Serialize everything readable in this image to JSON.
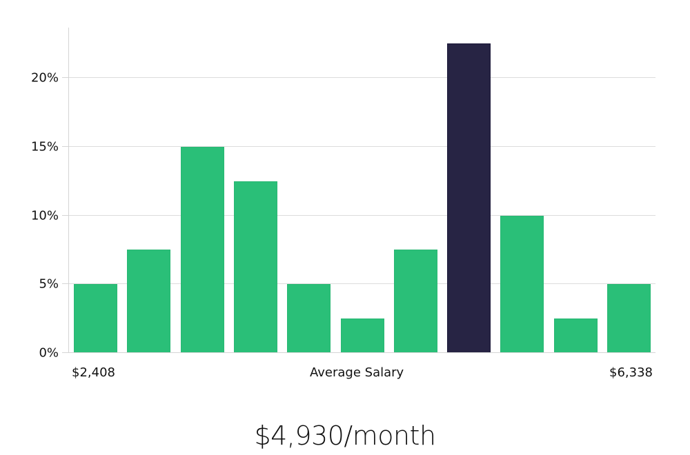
{
  "chart_data": {
    "type": "bar",
    "title": "",
    "xlabel": "Average Salary",
    "ylabel": "",
    "x_range_labels": {
      "min": "$2,408",
      "max": "$6,338"
    },
    "categories": [
      "bin1",
      "bin2",
      "bin3",
      "bin4",
      "bin5",
      "bin6",
      "bin7",
      "bin8",
      "bin9",
      "bin10",
      "bin11"
    ],
    "values": [
      5,
      7.5,
      15,
      12.5,
      5,
      2.5,
      7.5,
      22.5,
      10,
      2.5,
      5
    ],
    "highlight_index": 7,
    "ylim": [
      0,
      23.5
    ],
    "yticks": [
      0,
      5,
      10,
      15,
      20
    ],
    "ytick_labels": [
      "0%",
      "5%",
      "10%",
      "15%",
      "20%"
    ],
    "grid": true,
    "colors": {
      "bar": "#2abf78",
      "highlight": "#272444"
    },
    "summary": "$4,930/month"
  },
  "labels": {
    "x_min": "$2,408",
    "x_center": "Average Salary",
    "x_max": "$6,338",
    "summary": "$4,930/month"
  }
}
